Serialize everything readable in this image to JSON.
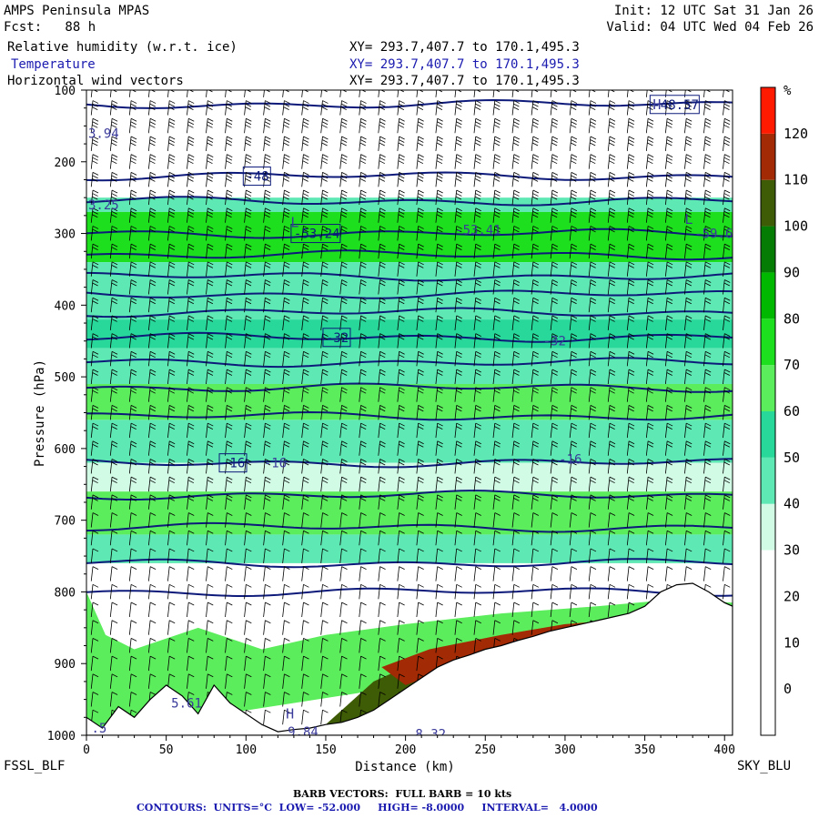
{
  "header": {
    "model": "AMPS Peninsula MPAS",
    "init": "Init: 12 UTC Sat 31 Jan 26",
    "fcst": "Fcst:   88 h",
    "valid": "Valid: 04 UTC Wed 04 Feb 26",
    "fields": [
      {
        "name": "Relative humidity (w.r.t. ice)",
        "xy": "XY= 293.7,407.7 to 170.1,495.3"
      },
      {
        "name": "Temperature",
        "xy": "XY= 293.7,407.7 to 170.1,495.3"
      },
      {
        "name": "Horizontal wind vectors",
        "xy": "XY= 293.7,407.7 to 170.1,495.3"
      }
    ]
  },
  "footer": {
    "left_station": "FSSL_BLF",
    "right_station": "SKY_BLU",
    "barb_note": "BARB VECTORS:  FULL BARB = 10 kts",
    "contour_note": "CONTOURS:  UNITS=°C  LOW= -52.000     HIGH= -8.0000     INTERVAL=   4.0000"
  },
  "colors": {
    "temperature_contour": "#0d1a7a",
    "header_blue": "#1b1bb0",
    "terrain": "#ffffff"
  },
  "chart_data": {
    "type": "heatmap",
    "title": "",
    "xlabel": "Distance (km)",
    "ylabel": "Pressure (hPa)",
    "xlim": [
      0,
      405
    ],
    "ylim": [
      1000,
      100
    ],
    "x_ticks": [
      0,
      50,
      100,
      150,
      200,
      250,
      300,
      350,
      400
    ],
    "y_ticks": [
      100,
      200,
      300,
      400,
      500,
      600,
      700,
      800,
      900,
      1000
    ],
    "colorbar": {
      "unit": "%",
      "tick_labels": [
        0,
        10,
        20,
        30,
        40,
        50,
        60,
        70,
        80,
        90,
        100,
        110,
        120
      ],
      "bands": [
        {
          "from": -10,
          "to": 0,
          "color": "#ffffff"
        },
        {
          "from": 0,
          "to": 10,
          "color": "#ffffff"
        },
        {
          "from": 10,
          "to": 20,
          "color": "#ffffff"
        },
        {
          "from": 20,
          "to": 30,
          "color": "#ffffff"
        },
        {
          "from": 30,
          "to": 40,
          "color": "#d2fbe6"
        },
        {
          "from": 40,
          "to": 50,
          "color": "#5ee8b4"
        },
        {
          "from": 50,
          "to": 60,
          "color": "#28d89a"
        },
        {
          "from": 60,
          "to": 70,
          "color": "#5ced5c"
        },
        {
          "from": 70,
          "to": 80,
          "color": "#1ddf1d"
        },
        {
          "from": 80,
          "to": 90,
          "color": "#00b800"
        },
        {
          "from": 90,
          "to": 100,
          "color": "#057d05"
        },
        {
          "from": 100,
          "to": 110,
          "color": "#3e5b06"
        },
        {
          "from": 110,
          "to": 120,
          "color": "#a22a04"
        },
        {
          "from": 120,
          "to": 130,
          "color": "#ff1a00"
        }
      ]
    },
    "rh_layers": [
      {
        "p_top": 100,
        "p_bot": 250,
        "value": 5
      },
      {
        "p_top": 250,
        "p_bot": 270,
        "value": 45
      },
      {
        "p_top": 270,
        "p_bot": 340,
        "value": 72
      },
      {
        "p_top": 340,
        "p_bot": 420,
        "value": 46
      },
      {
        "p_top": 420,
        "p_bot": 460,
        "value": 55
      },
      {
        "p_top": 460,
        "p_bot": 510,
        "value": 42
      },
      {
        "p_top": 510,
        "p_bot": 560,
        "value": 65
      },
      {
        "p_top": 560,
        "p_bot": 620,
        "value": 48
      },
      {
        "p_top": 620,
        "p_bot": 660,
        "value": 35
      },
      {
        "p_top": 660,
        "p_bot": 720,
        "value": 67
      },
      {
        "p_top": 720,
        "p_bot": 760,
        "value": 45
      },
      {
        "p_top": 760,
        "p_bot": 800,
        "value": 12
      },
      {
        "p_top": 800,
        "p_bot": 1000,
        "value": 15
      }
    ],
    "moist_lowlevel_region": {
      "value": 66,
      "outline": [
        [
          0,
          800
        ],
        [
          12,
          860
        ],
        [
          30,
          880
        ],
        [
          70,
          850
        ],
        [
          110,
          880
        ],
        [
          150,
          860
        ],
        [
          200,
          845
        ],
        [
          260,
          830
        ],
        [
          320,
          820
        ],
        [
          370,
          810
        ],
        [
          405,
          815
        ],
        [
          405,
          860
        ],
        [
          0,
          1000
        ]
      ]
    },
    "saturated_region": {
      "value": 104,
      "outline": [
        [
          150,
          985
        ],
        [
          180,
          925
        ],
        [
          220,
          885
        ],
        [
          270,
          860
        ],
        [
          320,
          840
        ],
        [
          355,
          840
        ],
        [
          345,
          860
        ],
        [
          280,
          890
        ],
        [
          230,
          930
        ],
        [
          200,
          990
        ]
      ]
    },
    "supersaturated_region": {
      "value": 118,
      "outline": [
        [
          185,
          905
        ],
        [
          215,
          880
        ],
        [
          260,
          860
        ],
        [
          300,
          845
        ],
        [
          340,
          838
        ],
        [
          330,
          858
        ],
        [
          270,
          880
        ],
        [
          230,
          905
        ],
        [
          200,
          930
        ]
      ]
    },
    "terrain_profile": [
      [
        0,
        975
      ],
      [
        10,
        990
      ],
      [
        20,
        960
      ],
      [
        30,
        975
      ],
      [
        40,
        950
      ],
      [
        50,
        930
      ],
      [
        60,
        945
      ],
      [
        70,
        970
      ],
      [
        80,
        930
      ],
      [
        90,
        955
      ],
      [
        100,
        970
      ],
      [
        110,
        985
      ],
      [
        120,
        995
      ],
      [
        130,
        992
      ],
      [
        140,
        990
      ],
      [
        150,
        985
      ],
      [
        160,
        982
      ],
      [
        170,
        975
      ],
      [
        180,
        965
      ],
      [
        190,
        950
      ],
      [
        200,
        935
      ],
      [
        210,
        920
      ],
      [
        220,
        905
      ],
      [
        230,
        895
      ],
      [
        240,
        888
      ],
      [
        250,
        880
      ],
      [
        260,
        875
      ],
      [
        270,
        868
      ],
      [
        280,
        862
      ],
      [
        290,
        855
      ],
      [
        300,
        850
      ],
      [
        310,
        845
      ],
      [
        320,
        840
      ],
      [
        330,
        835
      ],
      [
        340,
        830
      ],
      [
        350,
        820
      ],
      [
        360,
        800
      ],
      [
        370,
        790
      ],
      [
        380,
        788
      ],
      [
        390,
        800
      ],
      [
        400,
        815
      ],
      [
        405,
        820
      ]
    ],
    "temperature_isotherms": [
      {
        "p": 120,
        "label": "-48.57",
        "label_x": 355
      },
      {
        "p": 220,
        "label": "-48",
        "label_x": 100
      },
      {
        "p": 255
      },
      {
        "p": 300,
        "label": "-53.24",
        "label_x": 130
      },
      {
        "p": 330
      },
      {
        "p": 360
      },
      {
        "p": 385
      },
      {
        "p": 410
      },
      {
        "p": 445,
        "label": "-32",
        "label_x": 150
      },
      {
        "p": 480
      },
      {
        "p": 515
      },
      {
        "p": 555
      },
      {
        "p": 620,
        "label": "-16",
        "label_x": 85
      },
      {
        "p": 665
      },
      {
        "p": 710
      },
      {
        "p": 760
      },
      {
        "p": 800
      }
    ],
    "extra_labels": [
      {
        "x": 0,
        "p": 160,
        "text": "3.94"
      },
      {
        "x": 0,
        "p": 260,
        "text": "3.25"
      },
      {
        "x": 230,
        "p": 295,
        "text": "-53.41"
      },
      {
        "x": 380,
        "p": 300,
        "text": "-59.6"
      },
      {
        "x": 285,
        "p": 450,
        "text": "-32"
      },
      {
        "x": 110,
        "p": 620,
        "text": "-16"
      },
      {
        "x": 295,
        "p": 615,
        "text": "-16"
      },
      {
        "x": 52,
        "p": 955,
        "text": "5.61"
      },
      {
        "x": 2,
        "p": 990,
        "text": ".5"
      },
      {
        "x": 125,
        "p": 995,
        "text": "9.84"
      },
      {
        "x": 205,
        "p": 998,
        "text": "8.32"
      }
    ],
    "hl_markers": [
      {
        "x": 355,
        "p": 120,
        "text": "H"
      },
      {
        "x": 128,
        "p": 285,
        "text": "L"
      },
      {
        "x": 375,
        "p": 280,
        "text": "L"
      },
      {
        "x": 125,
        "p": 970,
        "text": "H"
      }
    ],
    "wind_barb_grid": {
      "x_spacing_km": 12,
      "p_spacing_hpa": 25,
      "barb_full_kts": 10
    }
  }
}
